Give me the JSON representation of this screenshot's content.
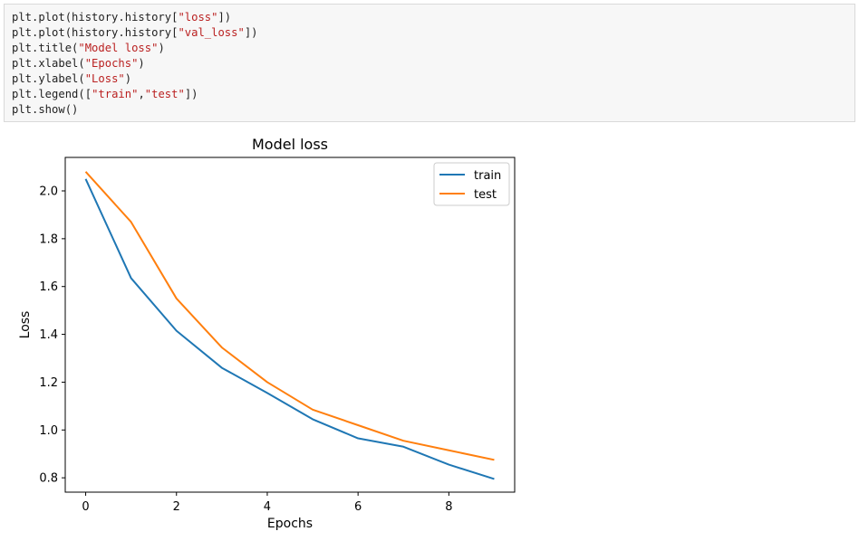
{
  "code_cell": {
    "lines": [
      [
        {
          "t": "plt.plot(history.history["
        },
        {
          "t": "\"loss\"",
          "s": true
        },
        {
          "t": "])"
        }
      ],
      [
        {
          "t": "plt.plot(history.history["
        },
        {
          "t": "\"val_loss\"",
          "s": true
        },
        {
          "t": "])"
        }
      ],
      [
        {
          "t": "plt.title("
        },
        {
          "t": "\"Model loss\"",
          "s": true
        },
        {
          "t": ")"
        }
      ],
      [
        {
          "t": "plt.xlabel("
        },
        {
          "t": "\"Epochs\"",
          "s": true
        },
        {
          "t": ")"
        }
      ],
      [
        {
          "t": "plt.ylabel("
        },
        {
          "t": "\"Loss\"",
          "s": true
        },
        {
          "t": ")"
        }
      ],
      [
        {
          "t": "plt.legend(["
        },
        {
          "t": "\"train\"",
          "s": true
        },
        {
          "t": ","
        },
        {
          "t": "\"test\"",
          "s": true
        },
        {
          "t": "])"
        }
      ],
      [
        {
          "t": "plt.show()"
        }
      ]
    ]
  },
  "chart_data": {
    "type": "line",
    "title": "Model loss",
    "xlabel": "Epochs",
    "ylabel": "Loss",
    "xlim": [
      -0.45,
      9.45
    ],
    "ylim": [
      0.74,
      2.14
    ],
    "xticks": [
      0,
      2,
      4,
      6,
      8
    ],
    "yticks": [
      0.8,
      1.0,
      1.2,
      1.4,
      1.6,
      1.8,
      2.0
    ],
    "grid": false,
    "legend_position": "top-right",
    "x": [
      0,
      1,
      2,
      3,
      4,
      5,
      6,
      7,
      8,
      9
    ],
    "series": [
      {
        "name": "train",
        "color": "#1f77b4",
        "values": [
          2.05,
          1.635,
          1.415,
          1.26,
          1.155,
          1.045,
          0.965,
          0.93,
          0.855,
          0.795
        ]
      },
      {
        "name": "test",
        "color": "#ff7f0e",
        "values": [
          2.08,
          1.87,
          1.55,
          1.345,
          1.2,
          1.085,
          1.02,
          0.955,
          0.915,
          0.875
        ]
      }
    ]
  }
}
